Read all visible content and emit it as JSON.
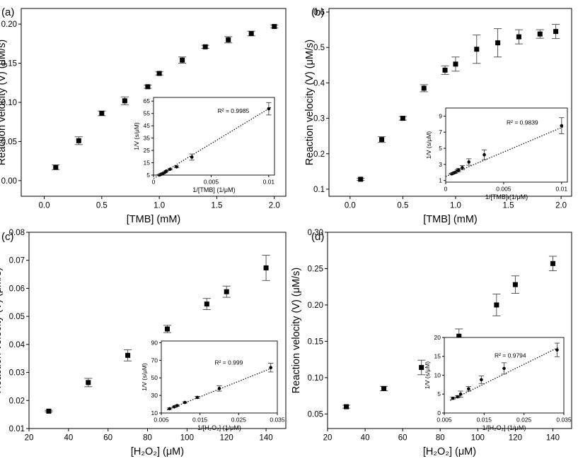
{
  "chart_data": [
    {
      "type": "scatter",
      "panel_label": "(a)",
      "xlabel": "[TMB] (mM)",
      "ylabel": "Reaction velocity (V) (μM/s)",
      "xlim": [
        -0.2,
        2.1
      ],
      "ylim": [
        -0.02,
        0.22
      ],
      "xticks": [
        0.0,
        0.5,
        1.0,
        1.5,
        2.0
      ],
      "xtick_labels": [
        "0.0",
        "0.5",
        "1.0",
        "1.5",
        "2.0"
      ],
      "yticks": [
        0.0,
        0.05,
        0.1,
        0.15,
        0.2
      ],
      "ytick_labels": [
        "0.00",
        "0.05",
        "0.10",
        "0.15",
        "0.20"
      ],
      "grid": false,
      "series": [
        {
          "marker": "square",
          "color": "#000000",
          "x": [
            0.1,
            0.3,
            0.5,
            0.7,
            0.9,
            1.0,
            1.2,
            1.4,
            1.6,
            1.8,
            2.0
          ],
          "y": [
            0.017,
            0.051,
            0.086,
            0.102,
            0.12,
            0.137,
            0.154,
            0.171,
            0.18,
            0.188,
            0.197
          ],
          "err": [
            0.003,
            0.005,
            0.003,
            0.005,
            0.002,
            0.002,
            0.004,
            0.002,
            0.004,
            0.003,
            0.002
          ]
        }
      ],
      "inset": {
        "xlabel": "1/[TMB] (1/μM)",
        "ylabel": "1/V (s/μM)",
        "annotation": "R² = 0.9985",
        "xlim": [
          0,
          0.0105
        ],
        "ylim": [
          5,
          68
        ],
        "xticks": [
          0,
          0.005,
          0.01
        ],
        "xtick_labels": [
          "0",
          "0.005",
          "0.01"
        ],
        "yticks": [
          5,
          15,
          25,
          35,
          45,
          55,
          65
        ],
        "ytick_labels": [
          "5",
          "15",
          "25",
          "35",
          "45",
          "55",
          "65"
        ],
        "x": [
          0.0005,
          0.00056,
          0.000625,
          0.000714,
          0.000833,
          0.001,
          0.00111,
          0.00143,
          0.002,
          0.00333,
          0.01
        ],
        "y": [
          5.1,
          5.3,
          5.6,
          5.9,
          6.5,
          7.3,
          8.3,
          9.7,
          11.7,
          19.6,
          58.8
        ],
        "err": [
          0.3,
          0.3,
          0.3,
          0.3,
          0.4,
          0.4,
          0.4,
          0.5,
          0.7,
          2.5,
          5.0
        ],
        "fit": [
          [
            0,
            2.2
          ],
          [
            0.0102,
            60
          ]
        ]
      }
    },
    {
      "type": "scatter",
      "panel_label": "(b)",
      "xlabel": "[TMB] (mM)",
      "ylabel": "Reaction velocity (V) (μM/s)",
      "xlim": [
        -0.2,
        2.1
      ],
      "ylim": [
        0.08,
        0.61
      ],
      "xticks": [
        0.0,
        0.5,
        1.0,
        1.5,
        2.0
      ],
      "xtick_labels": [
        "0.0",
        "0.5",
        "1.0",
        "1.5",
        "2.0"
      ],
      "yticks": [
        0.1,
        0.2,
        0.3,
        0.4,
        0.5,
        0.6
      ],
      "ytick_labels": [
        "0.1",
        "0.2",
        "0.3",
        "0.4",
        "0.5",
        "0.6"
      ],
      "grid": false,
      "series": [
        {
          "marker": "square",
          "color": "#000000",
          "x": [
            0.1,
            0.3,
            0.5,
            0.7,
            0.9,
            1.0,
            1.2,
            1.4,
            1.6,
            1.8,
            1.95
          ],
          "y": [
            0.128,
            0.24,
            0.3,
            0.385,
            0.436,
            0.453,
            0.495,
            0.513,
            0.53,
            0.538,
            0.545
          ],
          "err": [
            0.003,
            0.008,
            0.005,
            0.01,
            0.012,
            0.02,
            0.04,
            0.04,
            0.02,
            0.012,
            0.02
          ]
        }
      ],
      "inset": {
        "xlabel": "1/[TMB] (1/μM)",
        "ylabel": "1/V (s/μM)",
        "annotation": "R² = 0.9839",
        "xlim": [
          0,
          0.0105
        ],
        "ylim": [
          0.8,
          10
        ],
        "xticks": [
          0,
          0.005,
          0.01
        ],
        "xtick_labels": [
          "0",
          "0.005",
          "0.01"
        ],
        "yticks": [
          1,
          3,
          5,
          7,
          9
        ],
        "ytick_labels": [
          "1",
          "3",
          "5",
          "7",
          "9"
        ],
        "x": [
          0.0005,
          0.00056,
          0.000625,
          0.000714,
          0.000833,
          0.001,
          0.00111,
          0.00143,
          0.002,
          0.00333,
          0.01
        ],
        "y": [
          1.83,
          1.86,
          1.9,
          1.95,
          2.02,
          2.2,
          2.3,
          2.6,
          3.3,
          4.2,
          7.8
        ],
        "err": [
          0.05,
          0.05,
          0.05,
          0.08,
          0.1,
          0.15,
          0.2,
          0.25,
          0.4,
          0.6,
          1.0
        ],
        "fit": [
          [
            0,
            1.5
          ],
          [
            0.0102,
            7.7
          ]
        ]
      }
    },
    {
      "type": "scatter",
      "panel_label": "(c)",
      "xlabel": "[H₂O₂] (μM)",
      "ylabel": "Reaction velocity (V) (μM/s)",
      "xlim": [
        20,
        150
      ],
      "ylim": [
        0.01,
        0.08
      ],
      "xticks": [
        20,
        40,
        60,
        80,
        100,
        120,
        140
      ],
      "xtick_labels": [
        "20",
        "40",
        "60",
        "80",
        "100",
        "120",
        "140"
      ],
      "yticks": [
        0.01,
        0.02,
        0.03,
        0.04,
        0.05,
        0.06,
        0.07,
        0.08
      ],
      "ytick_labels": [
        "0.01",
        "0.02",
        "0.03",
        "0.04",
        "0.05",
        "0.06",
        "0.07",
        "0.08"
      ],
      "grid": false,
      "series": [
        {
          "marker": "square",
          "color": "#000000",
          "x": [
            30,
            50,
            70,
            90,
            110,
            120,
            140
          ],
          "y": [
            0.0162,
            0.0264,
            0.0361,
            0.0455,
            0.0544,
            0.0588,
            0.0673
          ],
          "err": [
            0.0003,
            0.0015,
            0.002,
            0.0013,
            0.002,
            0.002,
            0.0045
          ]
        }
      ],
      "inset": {
        "xlabel": "1/[H₂O₂] (1/μM)",
        "ylabel": "1/V (s/μM)",
        "annotation": "R² = 0.999",
        "xlim": [
          0.005,
          0.035
        ],
        "ylim": [
          10,
          92
        ],
        "xticks": [
          0.005,
          0.015,
          0.025,
          0.035
        ],
        "xtick_labels": [
          "0.005",
          "0.015",
          "0.025",
          "0.035"
        ],
        "yticks": [
          10,
          30,
          50,
          70,
          90
        ],
        "ytick_labels": [
          "10",
          "30",
          "50",
          "70",
          "90"
        ],
        "x": [
          0.00714,
          0.00833,
          0.00909,
          0.0111,
          0.0143,
          0.02,
          0.0333
        ],
        "y": [
          14.9,
          17.0,
          18.4,
          22.0,
          27.7,
          37.9,
          61.7
        ],
        "err": [
          0.8,
          0.8,
          0.8,
          0.8,
          1.2,
          3.0,
          5.0
        ],
        "fit": [
          [
            0.0065,
            13.5
          ],
          [
            0.0335,
            61
          ]
        ]
      }
    },
    {
      "type": "scatter",
      "panel_label": "(d)",
      "xlabel": "[H₂O₂] (μM)",
      "ylabel": "Reaction velocity (V) (μM/s)",
      "xlim": [
        20,
        150
      ],
      "ylim": [
        0.03,
        0.3
      ],
      "xticks": [
        20,
        40,
        60,
        80,
        100,
        120,
        140
      ],
      "xtick_labels": [
        "20",
        "40",
        "60",
        "80",
        "100",
        "120",
        "140"
      ],
      "yticks": [
        0.05,
        0.1,
        0.15,
        0.2,
        0.25,
        0.3
      ],
      "ytick_labels": [
        "0.05",
        "0.10",
        "0.15",
        "0.20",
        "0.25",
        "0.30"
      ],
      "grid": false,
      "series": [
        {
          "marker": "square",
          "color": "#000000",
          "x": [
            30,
            50,
            70,
            90,
            110,
            120,
            140
          ],
          "y": [
            0.06,
            0.085,
            0.114,
            0.157,
            0.2,
            0.228,
            0.257
          ],
          "err": [
            0.002,
            0.003,
            0.01,
            0.01,
            0.015,
            0.012,
            0.01
          ]
        }
      ],
      "inset": {
        "xlabel": "1/[H₂O₂] (1/μM)",
        "ylabel": "1/V (s/μM)",
        "annotation": "R² = 0.9794",
        "xlim": [
          0.005,
          0.035
        ],
        "ylim": [
          0,
          20
        ],
        "xticks": [
          0.005,
          0.015,
          0.025,
          0.035
        ],
        "xtick_labels": [
          "0.005",
          "0.015",
          "0.025",
          "0.035"
        ],
        "yticks": [
          0,
          5,
          10,
          15,
          20
        ],
        "ytick_labels": [
          "0",
          "5",
          "10",
          "15",
          "20"
        ],
        "x": [
          0.00714,
          0.00833,
          0.00909,
          0.0111,
          0.0143,
          0.02,
          0.0333
        ],
        "y": [
          3.9,
          4.3,
          5.0,
          6.4,
          8.8,
          11.8,
          16.7
        ],
        "err": [
          0.3,
          0.3,
          0.8,
          0.6,
          1.0,
          1.5,
          1.8
        ],
        "fit": [
          [
            0.0065,
            3.3
          ],
          [
            0.0335,
            17.3
          ]
        ]
      }
    }
  ]
}
